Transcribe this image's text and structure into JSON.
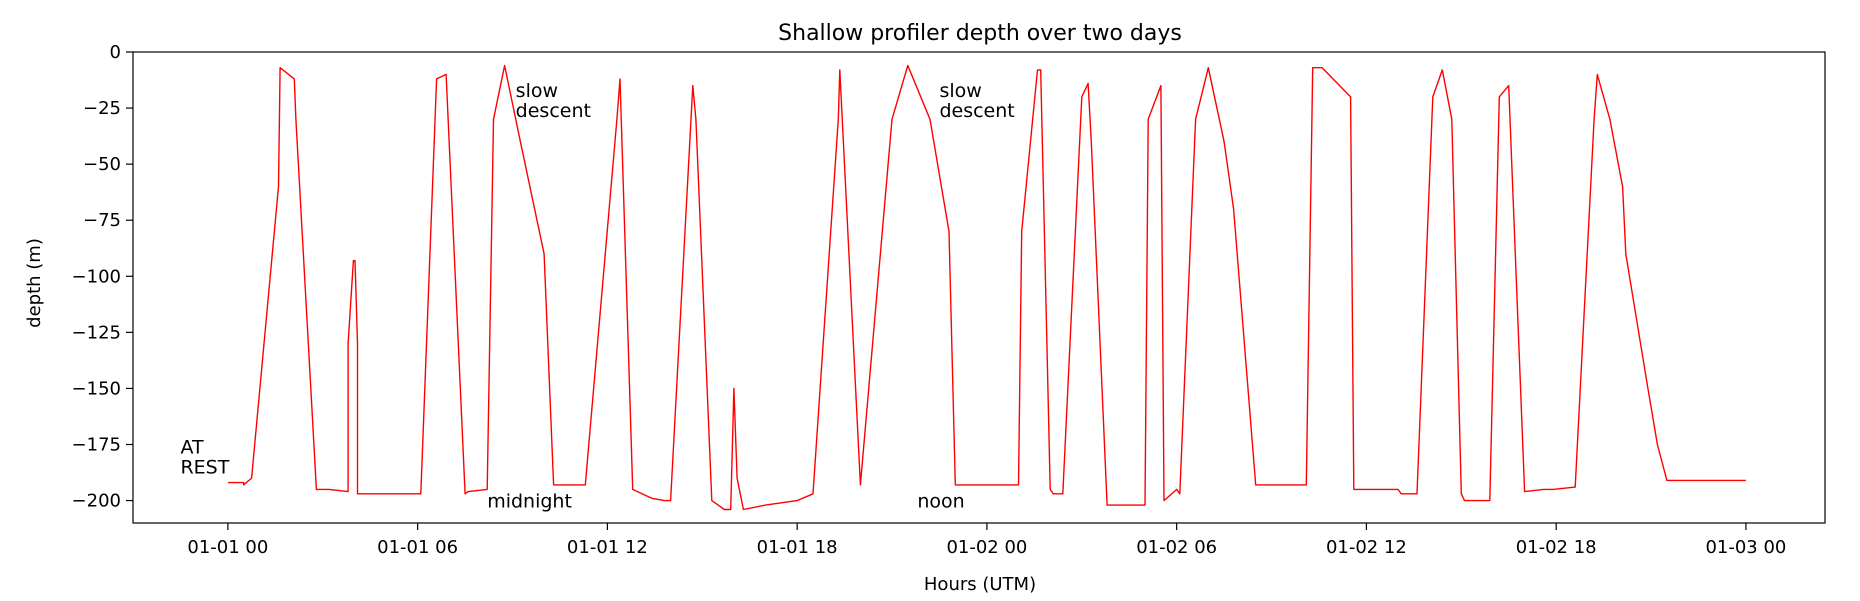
{
  "chart_data": {
    "type": "line",
    "title": "Shallow profiler depth over two days",
    "xlabel": "Hours (UTM)",
    "ylabel": "depth (m)",
    "x_unit": "hours",
    "xlim": [
      -3.0,
      50.5
    ],
    "ylim": [
      -210,
      0
    ],
    "x_ticks": [
      {
        "value": 0,
        "label": "01-01 00"
      },
      {
        "value": 6,
        "label": "01-01 06"
      },
      {
        "value": 12,
        "label": "01-01 12"
      },
      {
        "value": 18,
        "label": "01-01 18"
      },
      {
        "value": 24,
        "label": "01-02 00"
      },
      {
        "value": 30,
        "label": "01-02 06"
      },
      {
        "value": 36,
        "label": "01-02 12"
      },
      {
        "value": 42,
        "label": "01-02 18"
      },
      {
        "value": 48,
        "label": "01-03 00"
      }
    ],
    "y_ticks": [
      {
        "value": 0,
        "label": "0"
      },
      {
        "value": -25,
        "label": "−25"
      },
      {
        "value": -50,
        "label": "−50"
      },
      {
        "value": -75,
        "label": "−75"
      },
      {
        "value": -100,
        "label": "−100"
      },
      {
        "value": -125,
        "label": "−125"
      },
      {
        "value": -150,
        "label": "−150"
      },
      {
        "value": -175,
        "label": "−175"
      },
      {
        "value": -200,
        "label": "−200"
      }
    ],
    "grid": false,
    "series_color": "#ff0000",
    "series": [
      {
        "x": [
          0.0,
          0.5,
          0.5,
          0.75,
          1.6,
          1.65,
          2.1,
          2.15,
          2.8,
          3.2,
          3.8,
          3.8,
          3.97,
          4.02,
          4.1,
          4.1,
          4.8,
          4.8,
          4.8,
          6.03,
          6.1,
          6.6,
          6.9,
          7.5,
          7.5,
          7.6,
          8.2,
          8.4,
          8.75,
          9.25,
          10.0,
          10.3,
          11.2,
          11.3,
          12.3,
          12.4,
          12.8,
          13.4,
          13.8,
          14.0,
          14.7,
          14.8,
          15.3,
          15.7,
          15.8,
          15.9,
          16.0,
          16.1,
          16.3,
          16.3,
          17.0,
          18.0,
          18.5,
          19.3,
          19.35,
          20.0,
          20.0,
          21.0,
          21.5,
          22.2,
          22.8,
          23.0,
          23.5,
          24.5,
          25.0,
          25.1,
          25.6,
          25.7,
          26.0,
          26.1,
          26.4,
          27.0,
          27.2,
          27.3,
          27.8,
          28.5,
          29.0,
          29.1,
          29.5,
          29.6,
          30.0,
          30.1,
          30.6,
          31.0,
          31.5,
          31.8,
          32.5,
          33.0,
          33.3,
          34.1,
          34.3,
          34.6,
          35.5,
          35.6,
          37.0,
          37.1,
          37.6,
          38.1,
          38.4,
          38.7,
          39.0,
          39.1,
          39.8,
          39.9,
          40.2,
          40.5,
          41.0,
          41.6,
          41.7,
          41.9,
          42.6,
          43.2,
          43.3,
          43.7,
          44.1,
          44.2,
          44.9,
          45.2,
          45.5,
          45.9,
          46.1,
          46.3,
          46.7,
          47.0,
          47.3,
          47.6,
          47.6,
          47.8,
          48.0
        ],
        "y": [
          -192,
          -192,
          -193,
          -190,
          -60,
          -7,
          -12,
          -30,
          -195,
          -195,
          -196,
          -130,
          -93,
          -93,
          -130,
          -197,
          -197,
          -197,
          -197,
          -197,
          -197,
          -12,
          -10,
          -197,
          -197,
          -196,
          -195,
          -30,
          -6,
          -40,
          -90,
          -193,
          -193,
          -193,
          -30,
          -12,
          -195,
          -199,
          -200,
          -200,
          -15,
          -30,
          -200,
          -204,
          -204,
          -204,
          -150,
          -190,
          -204,
          -204,
          -202,
          -200,
          -197,
          -30,
          -8,
          -193,
          -193,
          -30,
          -6,
          -30,
          -80,
          -193,
          -193,
          -193,
          -193,
          -80,
          -8,
          -8,
          -195,
          -197,
          -197,
          -20,
          -14,
          -40,
          -202,
          -202,
          -202,
          -30,
          -15,
          -200,
          -195,
          -197,
          -30,
          -7,
          -40,
          -70,
          -193,
          -193,
          -193,
          -193,
          -7,
          -7,
          -20,
          -195,
          -195,
          -197,
          -197,
          -20,
          -8,
          -30,
          -197,
          -200,
          -200,
          -200,
          -20,
          -15,
          -196,
          -195,
          -195,
          -195,
          -194,
          -30,
          -10,
          -30,
          -60,
          -90,
          -150,
          -175,
          -191,
          -191,
          -191,
          -191,
          -191,
          -191,
          -191,
          -191,
          -191,
          -191,
          -191
        ]
      }
    ],
    "annotations": [
      {
        "lines": [
          "AT",
          "REST"
        ],
        "x": -1.5,
        "y": -179
      },
      {
        "lines": [
          "midnight"
        ],
        "x": 8.2,
        "y": -203
      },
      {
        "lines": [
          "slow",
          "descent"
        ],
        "x": 9.1,
        "y": -20
      },
      {
        "lines": [
          "noon"
        ],
        "x": 21.8,
        "y": -203
      },
      {
        "lines": [
          "slow",
          "descent"
        ],
        "x": 22.5,
        "y": -20
      }
    ]
  }
}
